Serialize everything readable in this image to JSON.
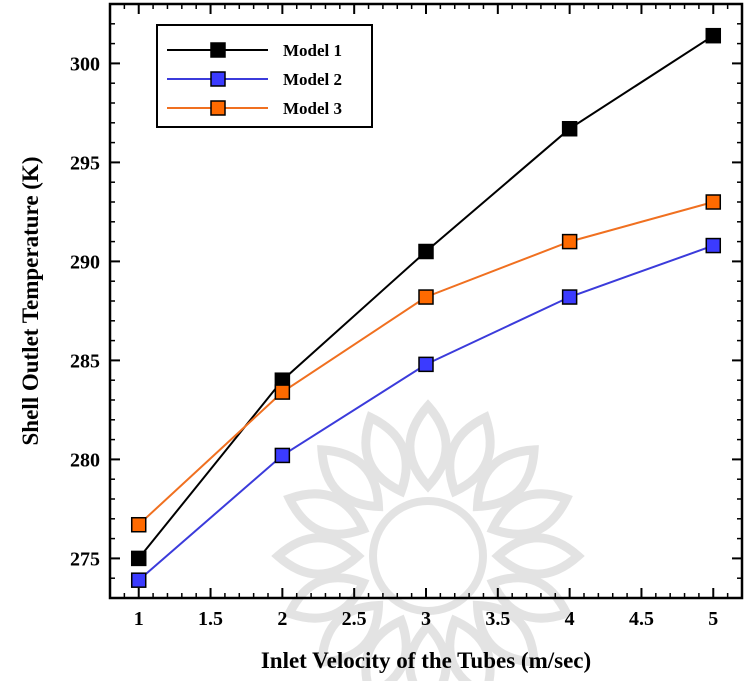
{
  "chart_data": {
    "type": "line",
    "xlabel": "Inlet Velocity of the Tubes (m/sec)",
    "ylabel": "Shell Outlet Temperature (K)",
    "xlim": [
      0.8,
      5.2
    ],
    "ylim": [
      273,
      303
    ],
    "x_ticks": [
      1,
      1.5,
      2,
      2.5,
      3,
      3.5,
      4,
      4.5,
      5
    ],
    "x_tick_labels": [
      "1",
      "1.5",
      "2",
      "2.5",
      "3",
      "3.5",
      "4",
      "4.5",
      "5"
    ],
    "y_ticks": [
      275,
      280,
      285,
      290,
      295,
      300
    ],
    "y_tick_labels": [
      "275",
      "280",
      "285",
      "290",
      "295",
      "300"
    ],
    "x": [
      1,
      2,
      3,
      4,
      5
    ],
    "series": [
      {
        "name": "Model 1",
        "color": "#000000",
        "marker_color": "#000000",
        "values": [
          275.0,
          284.0,
          290.5,
          296.7,
          301.4
        ]
      },
      {
        "name": "Model 2",
        "color": "#3b3bdb",
        "marker_color": "#3b3bff",
        "values": [
          273.9,
          280.2,
          284.8,
          288.2,
          290.8
        ]
      },
      {
        "name": "Model 3",
        "color": "#f07020",
        "marker_color": "#ff6a00",
        "values": [
          276.7,
          283.4,
          288.2,
          291.0,
          293.0
        ]
      }
    ],
    "legend_position": "top-left",
    "grid": false
  }
}
